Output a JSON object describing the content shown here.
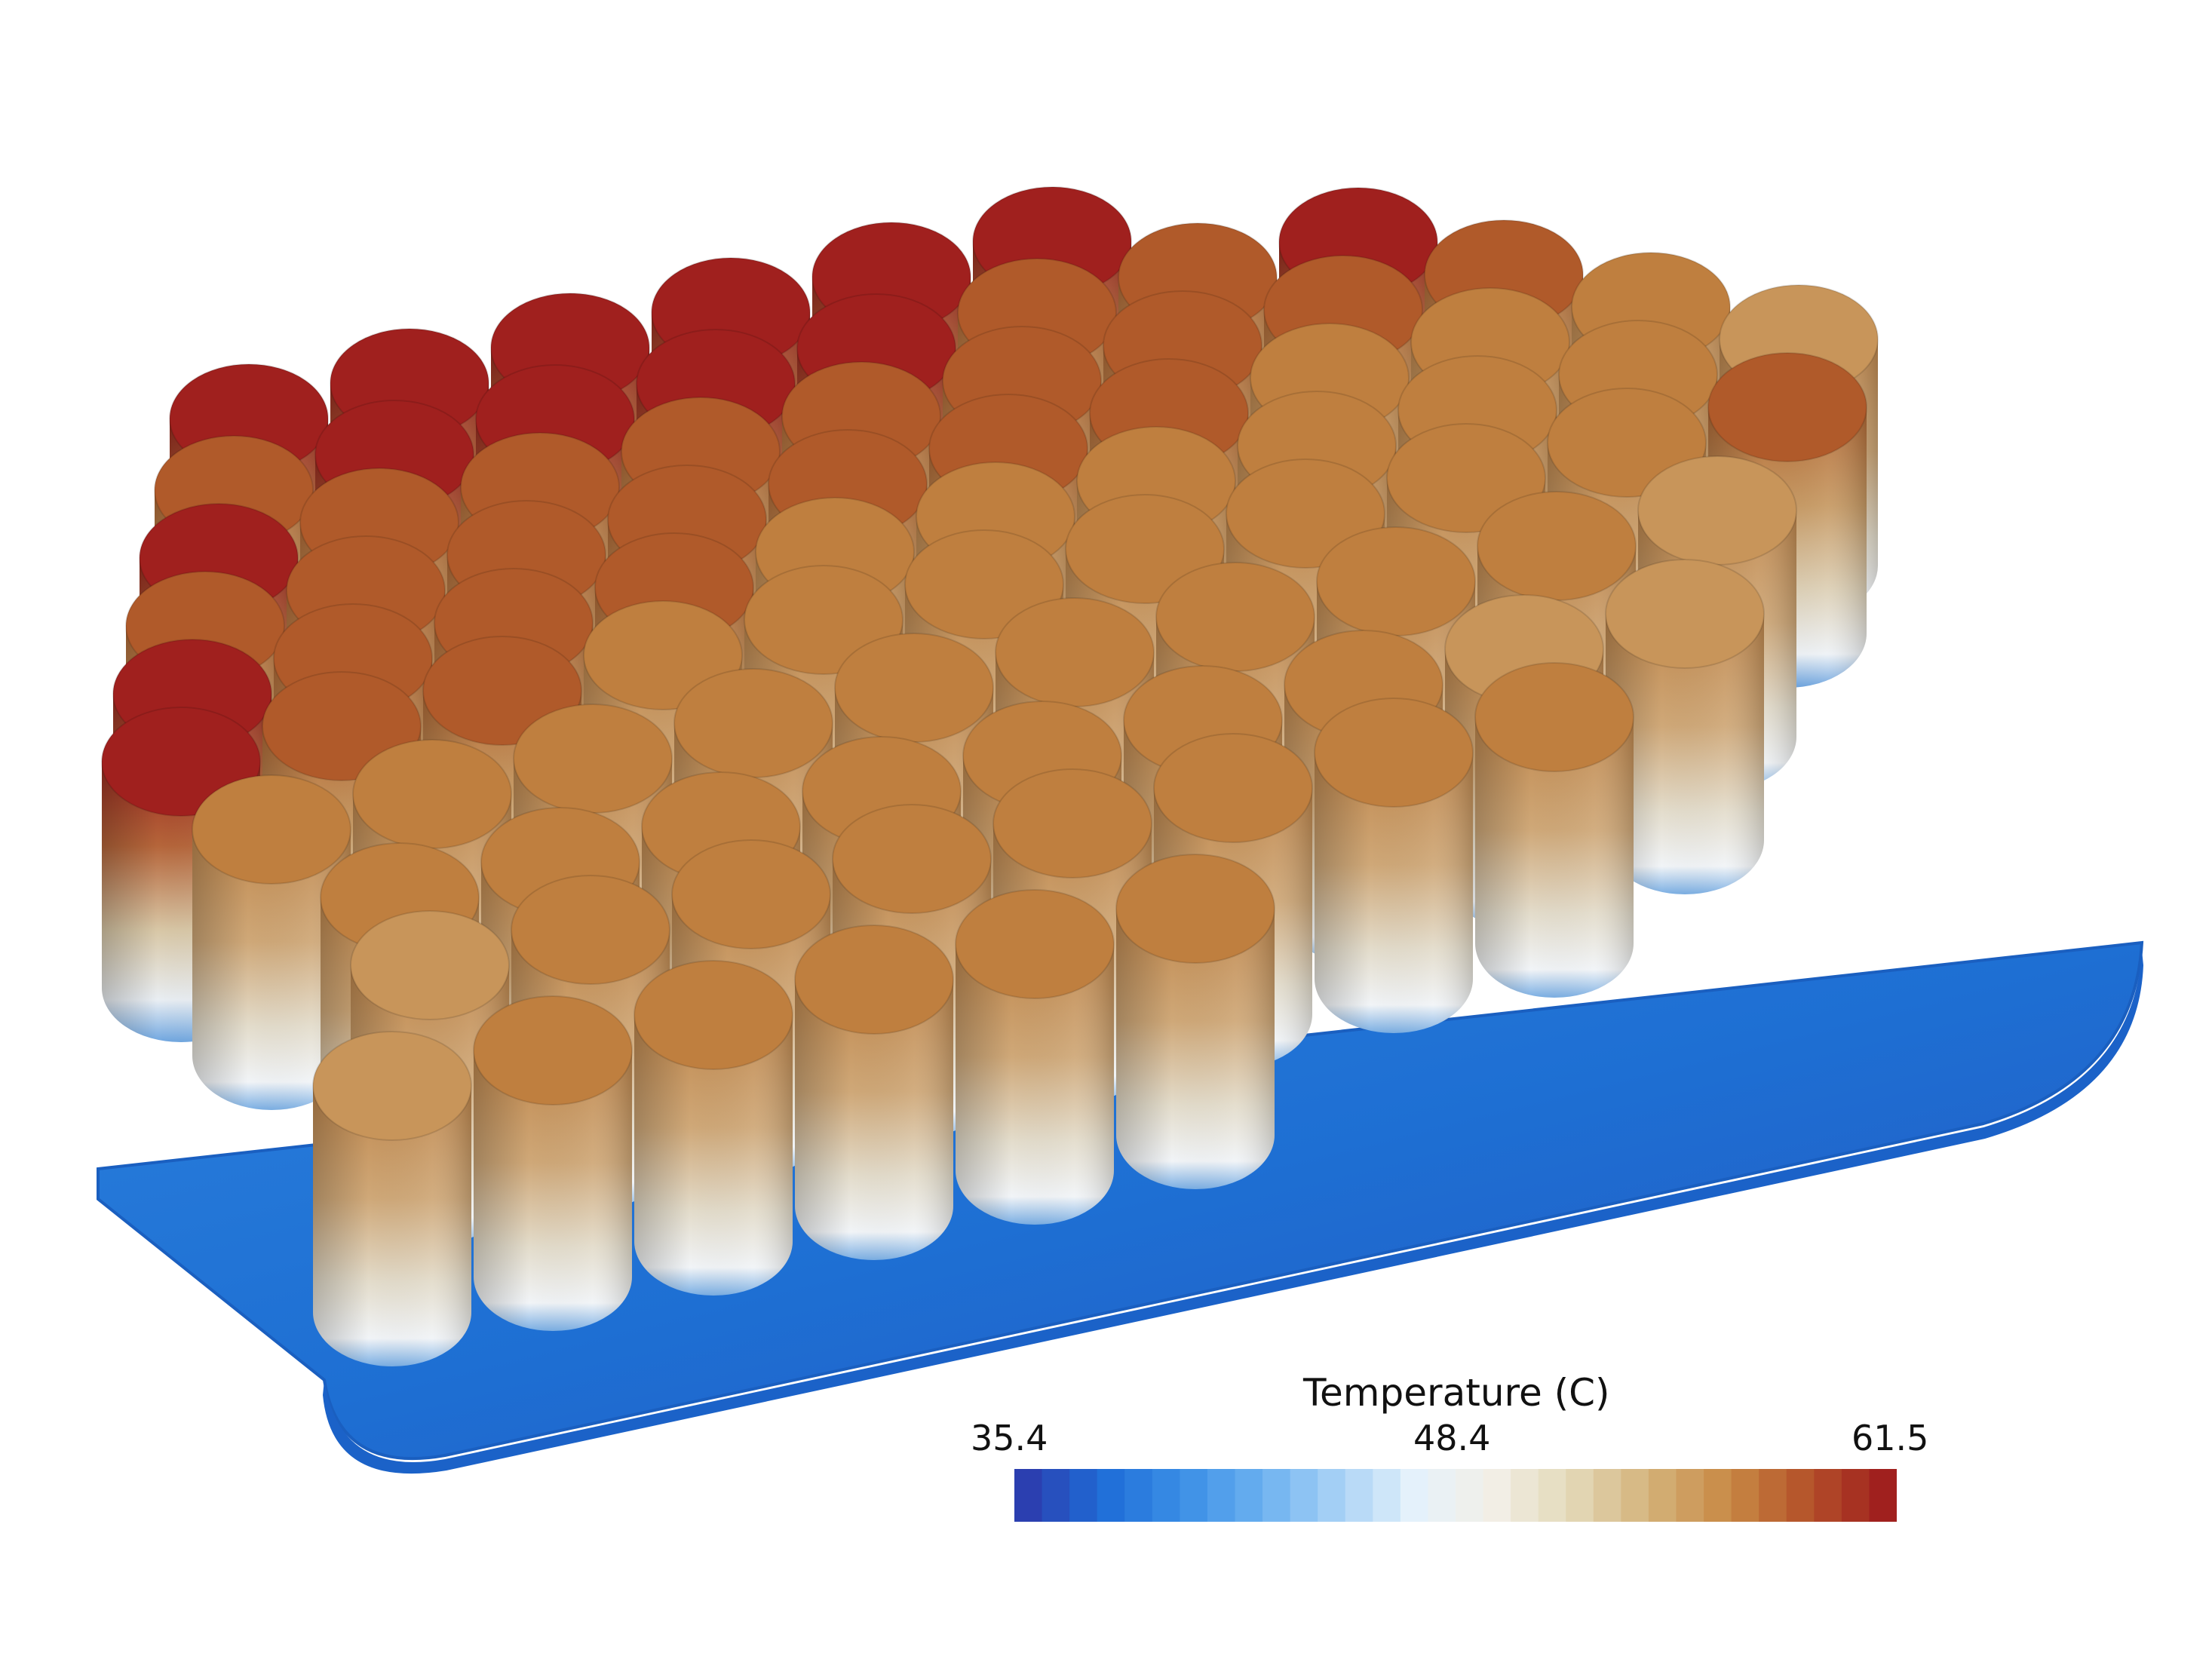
{
  "legend": {
    "title": "Temperature (C)",
    "min_label": "35.4",
    "mid_label": "48.4",
    "max_label": "61.5",
    "range": [
      35.4,
      61.5
    ],
    "colors": [
      "#2b3fb0",
      "#1f6ed8",
      "#3b8fe6",
      "#6bb0f0",
      "#a9d2f5",
      "#e6f2fb",
      "#f2efe6",
      "#e3d9b8",
      "#d4b27a",
      "#c98a45",
      "#b5532a",
      "#a0201e"
    ]
  },
  "colors": {
    "hot": "#a0201e",
    "warm": "#b05a2a",
    "medium": "#bf7f3f",
    "cool_top": "#c8955a",
    "base_plate": "#1e73d6"
  }
}
